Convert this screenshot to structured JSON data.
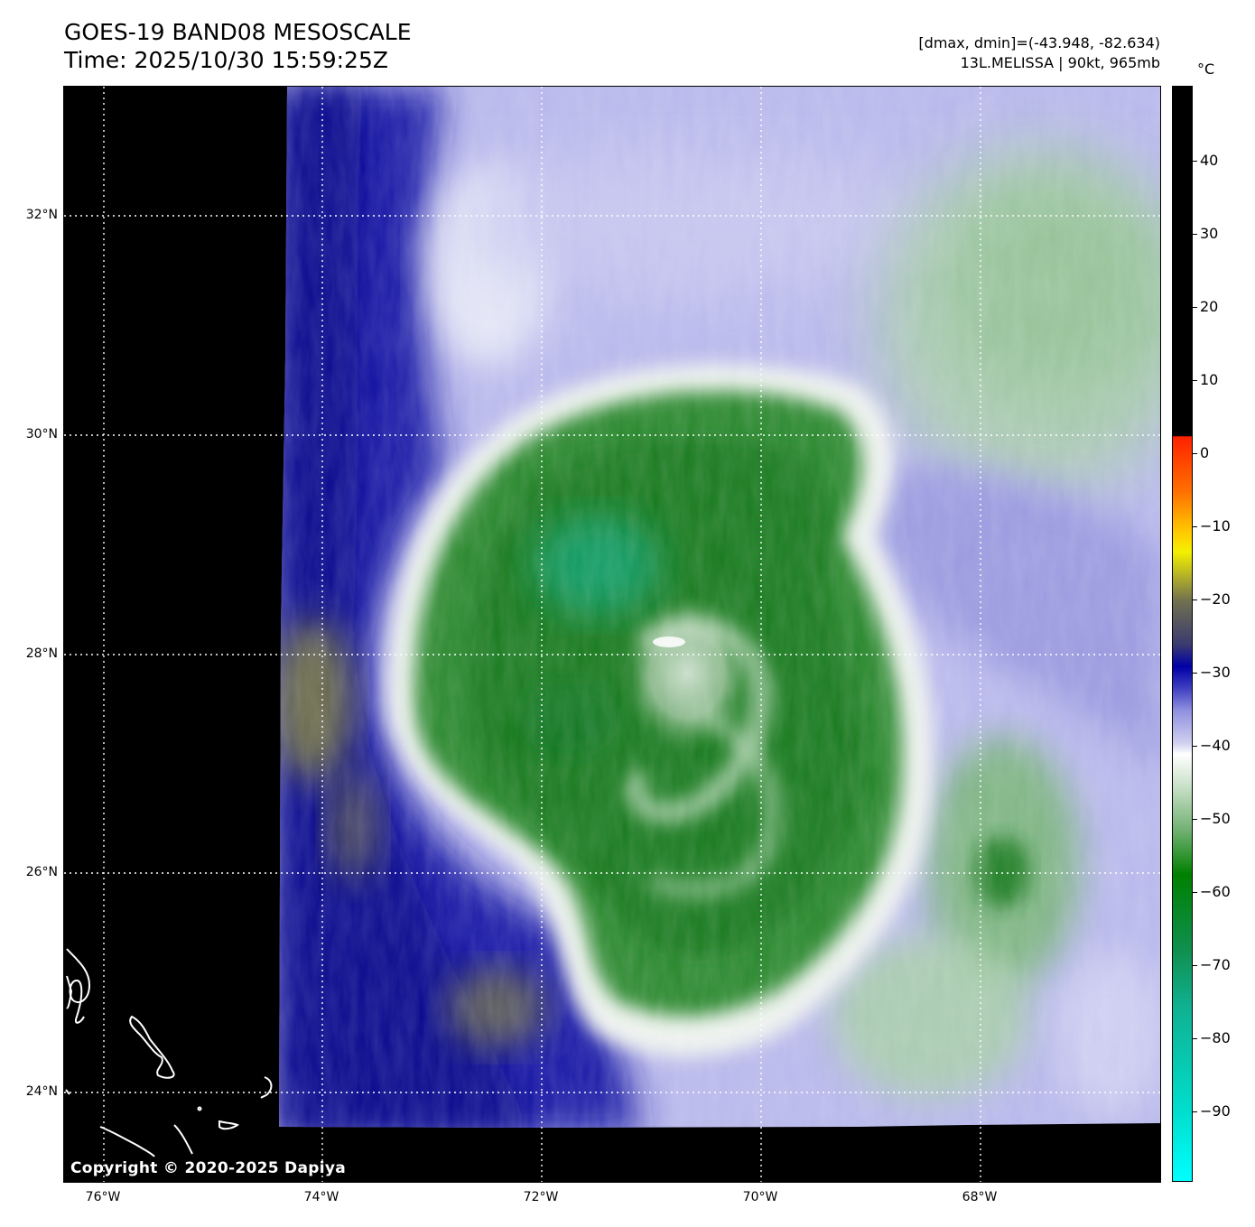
{
  "title": {
    "line1": "GOES-19 BAND08 MESOSCALE",
    "line2": "Time: 2025/10/30 15:59:25Z"
  },
  "meta": {
    "line1": "[dmax, dmin]=(-43.948, -82.634)",
    "line2": "13L.MELISSA | 90kt, 965mb"
  },
  "map": {
    "lat_labels": [
      "32°N",
      "30°N",
      "28°N",
      "26°N",
      "24°N"
    ],
    "lon_labels": [
      "76°W",
      "74°W",
      "72°W",
      "70°W",
      "68°W"
    ],
    "copyright": "Copyright © 2020-2025 Dapiya",
    "colors": {
      "no_data": "#000000",
      "coastline": "#ffffff",
      "gridlines": "#ffffff",
      "deep_blue": "#1616a8",
      "pale_blue": "#a8a8e6",
      "cold_top_green": "#1f7d23",
      "coldest_teal": "#18a070",
      "olive": "#8a8a40"
    }
  },
  "colorbar": {
    "unit": "°C",
    "labels": [
      "40",
      "30",
      "20",
      "10",
      "0",
      "−10",
      "−20",
      "−30",
      "−40",
      "−50",
      "−60",
      "−70",
      "−80",
      "−90"
    ]
  }
}
